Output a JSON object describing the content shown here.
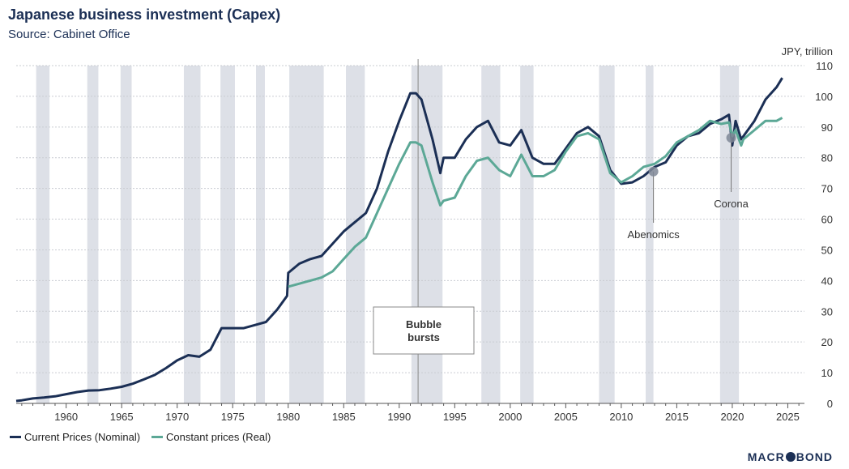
{
  "chart_data": {
    "type": "line",
    "title": "Japanese business investment (Capex)",
    "subtitle": "Source: Cabinet Office",
    "ylabel": "JPY, trillion",
    "xlim": [
      1955.5,
      2026.5
    ],
    "ylim": [
      0,
      110
    ],
    "y_ticks": [
      0,
      10,
      20,
      30,
      40,
      50,
      60,
      70,
      80,
      90,
      100,
      110
    ],
    "x_ticks": [
      1960,
      1965,
      1970,
      1975,
      1980,
      1985,
      1990,
      1995,
      2000,
      2005,
      2010,
      2015,
      2020,
      2025
    ],
    "grid": true,
    "legend_position": "bottom-left",
    "recessions": [
      [
        1957.3,
        1958.5
      ],
      [
        1961.9,
        1962.9
      ],
      [
        1964.9,
        1965.9
      ],
      [
        1970.6,
        1972.1
      ],
      [
        1973.9,
        1975.2
      ],
      [
        1977.1,
        1977.9
      ],
      [
        1980.1,
        1983.2
      ],
      [
        1985.2,
        1986.9
      ],
      [
        1991.1,
        1993.9
      ],
      [
        1997.4,
        1999.1
      ],
      [
        2000.9,
        2002.1
      ],
      [
        2008.0,
        2009.4
      ],
      [
        2012.2,
        2012.9
      ],
      [
        2018.9,
        2020.6
      ]
    ],
    "series": [
      {
        "name": "Current Prices (Nominal)",
        "color": "#1b2f55",
        "x": [
          1955.5,
          1956,
          1957,
          1958,
          1959,
          1960,
          1961,
          1962,
          1963,
          1964,
          1965,
          1966,
          1967,
          1968,
          1969,
          1970,
          1971,
          1972,
          1973,
          1974,
          1975,
          1976,
          1977,
          1978,
          1979,
          1979.9,
          1980,
          1981,
          1982,
          1983,
          1984,
          1985,
          1986,
          1987,
          1988,
          1989,
          1990,
          1991,
          1991.5,
          1992,
          1993,
          1993.7,
          1994,
          1995,
          1996,
          1997,
          1998,
          1999,
          2000,
          2001,
          2002,
          2003,
          2004,
          2005,
          2006,
          2007,
          2008,
          2009,
          2010,
          2011,
          2012,
          2013,
          2014,
          2015,
          2016,
          2017,
          2018,
          2019,
          2019.7,
          2020,
          2020.3,
          2020.8,
          2021,
          2022,
          2023,
          2024,
          2024.5
        ],
        "values": [
          0.8,
          1.0,
          1.6,
          1.9,
          2.3,
          3.0,
          3.7,
          4.2,
          4.3,
          4.8,
          5.4,
          6.4,
          7.8,
          9.3,
          11.5,
          14.0,
          15.7,
          15.2,
          17.5,
          24.5,
          24.5,
          24.5,
          25.5,
          26.5,
          30.5,
          35.0,
          42.5,
          45.5,
          47.0,
          48.0,
          52.0,
          56.0,
          59.0,
          62.0,
          70.0,
          82.0,
          92.0,
          101.0,
          101.0,
          99.0,
          86.0,
          75.0,
          80.0,
          80.0,
          86.0,
          90.0,
          92.0,
          85.0,
          84.0,
          89.0,
          80.0,
          78.0,
          78.0,
          83.0,
          88.0,
          90.0,
          87.0,
          76.0,
          71.5,
          72.0,
          74.0,
          77.0,
          78.5,
          84.0,
          87.0,
          88.0,
          91.0,
          92.5,
          94.0,
          84.0,
          92.0,
          86.0,
          87.0,
          92.0,
          99.0,
          103.0,
          106.0
        ]
      },
      {
        "name": "Constant prices (Real)",
        "color": "#5ca896",
        "x": [
          1980,
          1981,
          1982,
          1983,
          1984,
          1985,
          1986,
          1987,
          1988,
          1989,
          1990,
          1991,
          1991.5,
          1992,
          1993,
          1993.7,
          1994,
          1995,
          1996,
          1997,
          1998,
          1999,
          2000,
          2001,
          2002,
          2003,
          2004,
          2005,
          2006,
          2007,
          2008,
          2009,
          2010,
          2011,
          2012,
          2013,
          2014,
          2015,
          2016,
          2017,
          2018,
          2019,
          2019.7,
          2020,
          2020.3,
          2020.8,
          2021,
          2022,
          2023,
          2024,
          2024.5
        ],
        "values": [
          38.0,
          39.0,
          40.0,
          41.0,
          43.0,
          47.0,
          51.0,
          54.0,
          62.0,
          70.0,
          78.0,
          85.0,
          85.0,
          84.0,
          72.0,
          64.5,
          66.0,
          67.0,
          74.0,
          79.0,
          80.0,
          76.0,
          74.0,
          81.0,
          74.0,
          74.0,
          76.0,
          82.0,
          87.0,
          88.0,
          86.0,
          75.0,
          72.0,
          74.0,
          77.0,
          78.0,
          80.5,
          85.0,
          87.0,
          89.0,
          92.0,
          91.0,
          91.5,
          87.0,
          89.0,
          84.0,
          86.0,
          89.0,
          92.0,
          92.0,
          93.0
        ]
      }
    ],
    "annotations": [
      {
        "label": "Bubble\nbursts",
        "line1": "Bubble",
        "line2": "bursts",
        "x": 1991.7,
        "kind": "vline-box"
      },
      {
        "label": "Abenomics",
        "x": 2012.9,
        "y": 75.5,
        "kind": "dot-callout"
      },
      {
        "label": "Corona",
        "x": 2019.9,
        "y": 86.5,
        "kind": "dot-callout"
      }
    ]
  },
  "brand": {
    "text_left": "MACR",
    "text_right": "BOND"
  }
}
